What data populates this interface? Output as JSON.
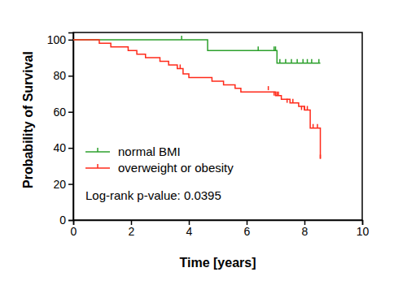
{
  "chart_data": {
    "type": "step",
    "x_label": "Time [years]",
    "y_label": "Probability of Survival",
    "annotation": "Log-rank p-value: 0.0395",
    "xlim": [
      0,
      10
    ],
    "xticks": [
      0,
      2,
      4,
      6,
      8,
      10
    ],
    "ylim": [
      0,
      104
    ],
    "yticks": [
      0,
      20,
      40,
      60,
      80,
      100
    ],
    "legend": "lower left",
    "marker": "censor-tick",
    "series": [
      {
        "name": "normal BMI",
        "color": "#2ca02c",
        "x": [
          0,
          4.65,
          7.05,
          8.55
        ],
        "values": [
          100,
          94,
          87,
          87
        ],
        "censor_x": [
          3.75,
          6.4,
          6.95,
          7.0,
          7.15,
          7.35,
          7.55,
          7.75,
          7.95,
          8.1,
          8.25,
          8.5
        ],
        "censor_values": [
          100,
          94,
          94,
          94,
          87,
          87,
          87,
          87,
          87,
          87,
          87,
          87
        ]
      },
      {
        "name": "overweight or obesity",
        "color": "#ff2a1a",
        "x": [
          0,
          0.9,
          1.3,
          1.9,
          2.2,
          2.5,
          3.0,
          3.3,
          3.6,
          3.8,
          4.0,
          4.8,
          5.2,
          5.6,
          5.8,
          7.0,
          7.2,
          7.5,
          7.8,
          8.0,
          8.2,
          8.55
        ],
        "values": [
          100,
          98,
          96,
          94,
          92,
          90,
          88,
          86,
          84,
          81,
          79,
          77,
          75,
          73,
          71,
          69,
          67,
          65,
          63,
          61,
          51,
          34
        ],
        "censor_x": [
          3.7,
          6.75,
          6.95,
          7.05,
          7.1,
          7.4,
          7.6,
          7.9,
          8.0,
          8.1,
          8.3,
          8.45,
          8.55
        ],
        "censor_values": [
          84,
          72,
          69,
          69,
          69,
          65,
          65,
          61,
          61,
          61,
          51,
          51,
          34
        ]
      }
    ]
  }
}
